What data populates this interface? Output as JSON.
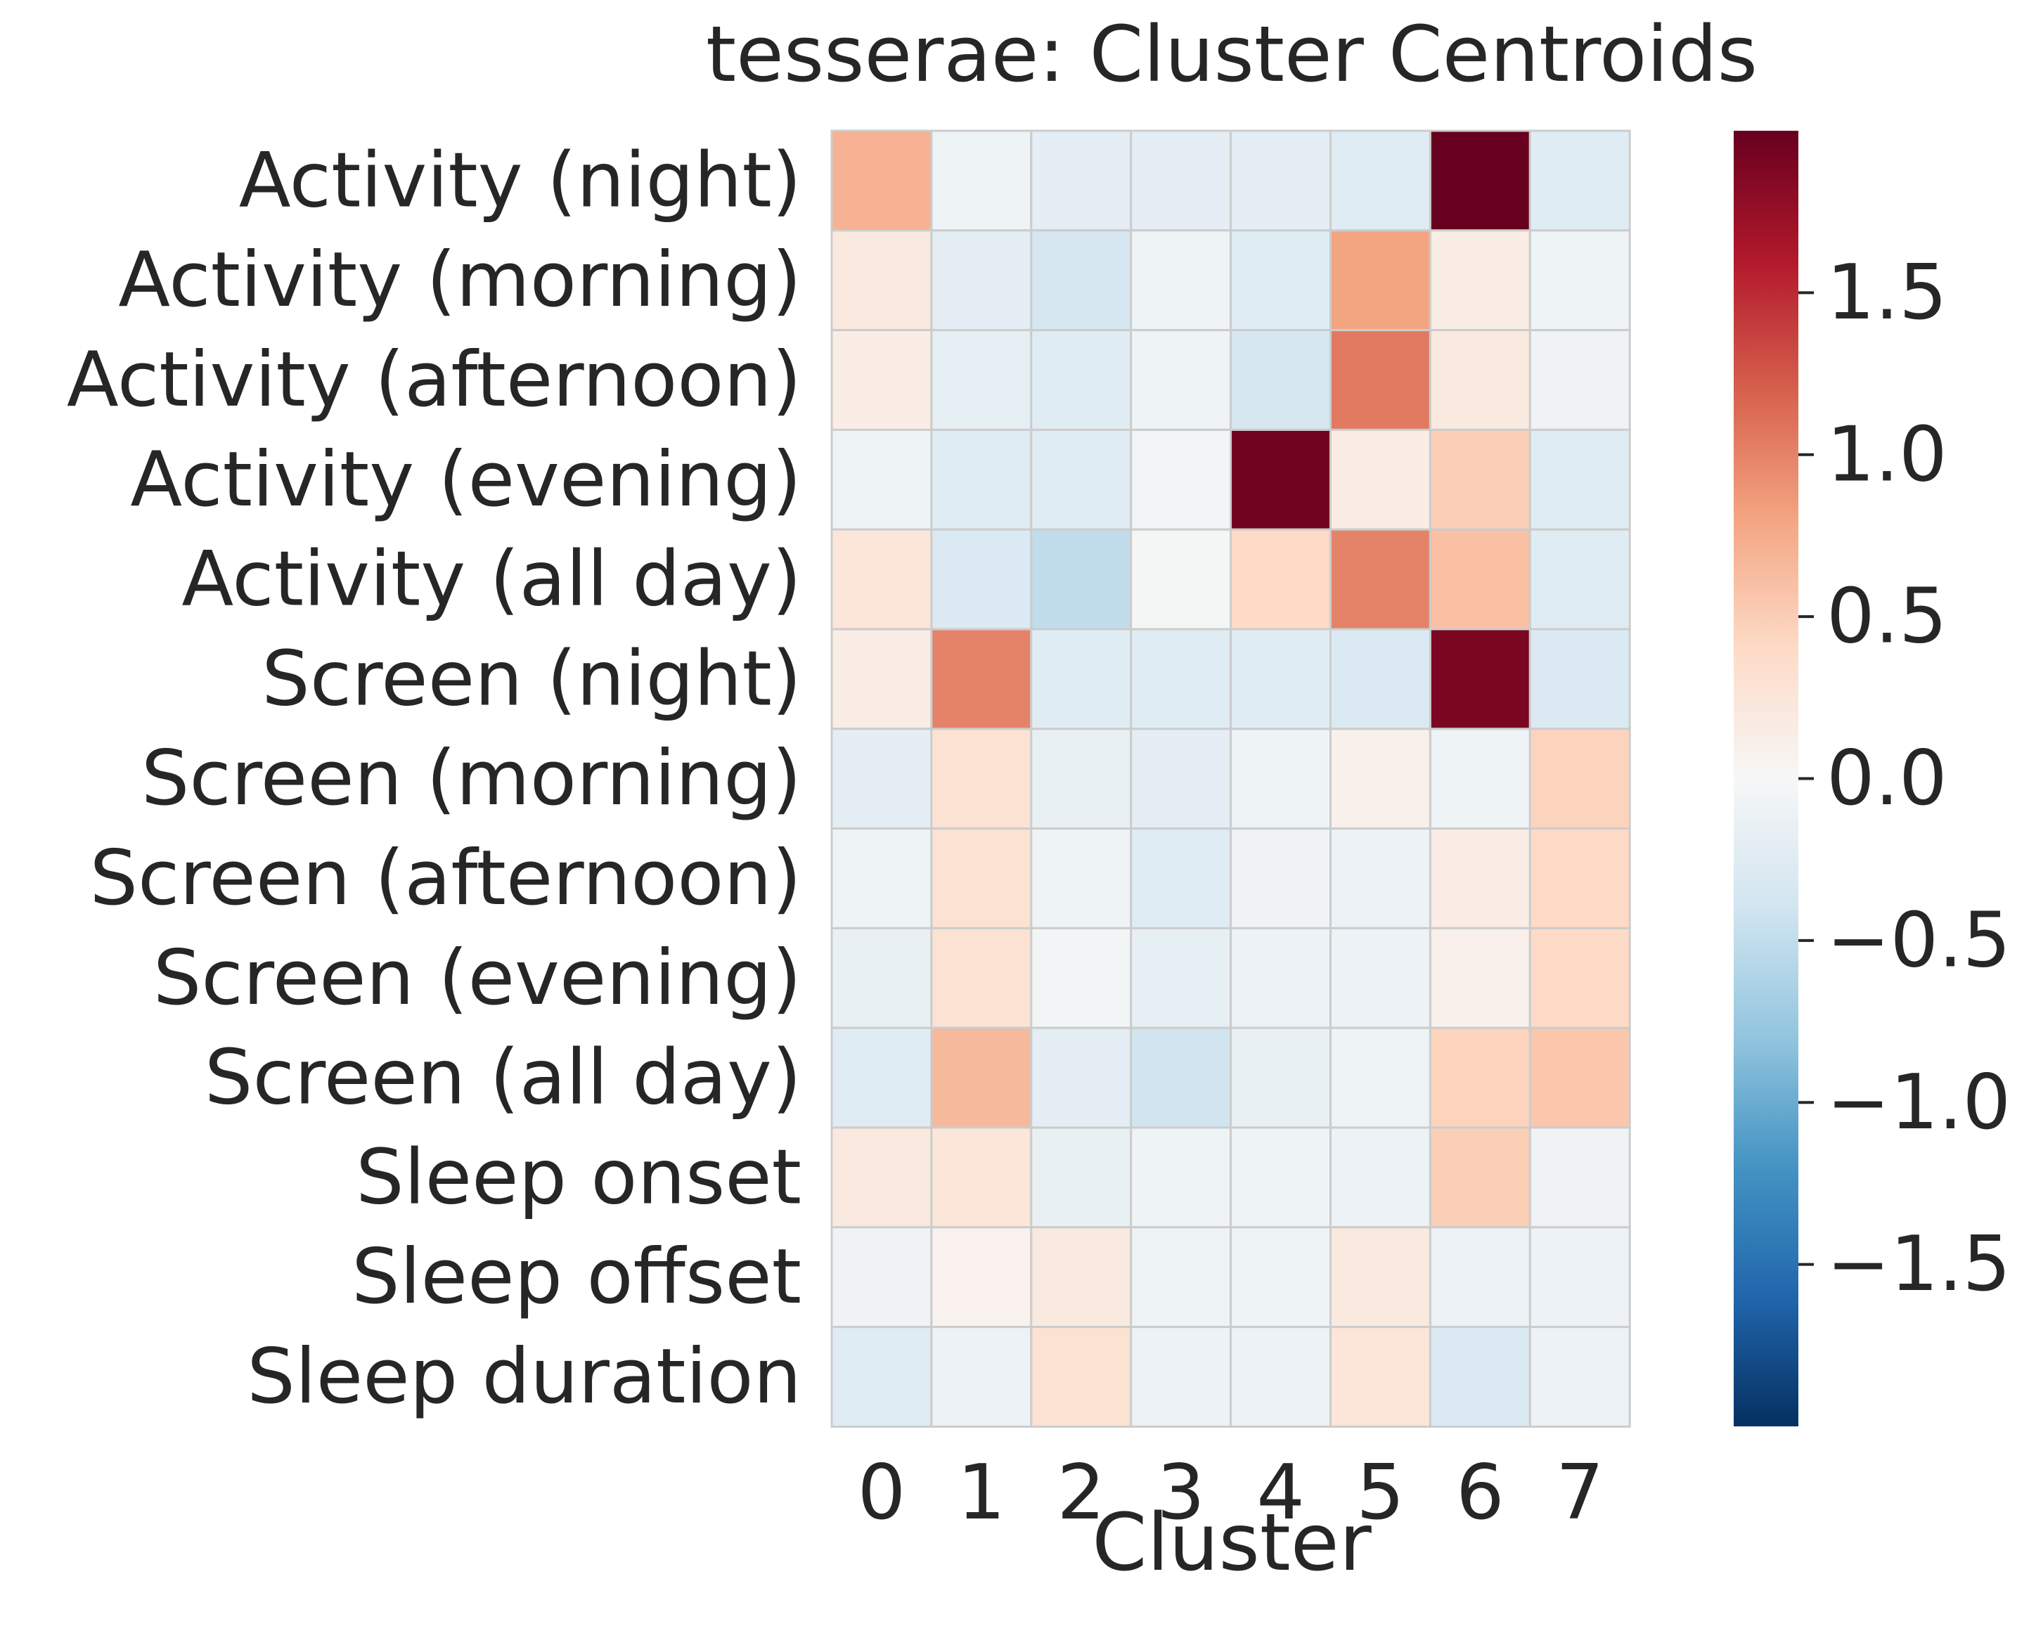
{
  "chart_data": {
    "type": "heatmap",
    "title": "tesserae: Cluster Centroids",
    "xlabel": "Cluster",
    "ylabel": "",
    "categories": [
      "0",
      "1",
      "2",
      "3",
      "4",
      "5",
      "6",
      "7"
    ],
    "rows": [
      "Activity (night)",
      "Activity (morning)",
      "Activity (afternoon)",
      "Activity (evening)",
      "Activity (all day)",
      "Screen (night)",
      "Screen (morning)",
      "Screen (afternoon)",
      "Screen (evening)",
      "Screen (all day)",
      "Sleep onset",
      "Sleep offset",
      "Sleep duration"
    ],
    "values": [
      [
        0.7,
        -0.1,
        -0.2,
        -0.2,
        -0.2,
        -0.25,
        2.0,
        -0.25
      ],
      [
        0.2,
        -0.2,
        -0.35,
        -0.1,
        -0.25,
        0.8,
        0.15,
        -0.1
      ],
      [
        0.15,
        -0.18,
        -0.25,
        -0.1,
        -0.35,
        1.05,
        0.2,
        -0.08
      ],
      [
        -0.1,
        -0.25,
        -0.25,
        -0.05,
        1.95,
        0.15,
        0.5,
        -0.25
      ],
      [
        0.25,
        -0.3,
        -0.5,
        -0.03,
        0.4,
        1.0,
        0.6,
        -0.25
      ],
      [
        0.15,
        1.0,
        -0.25,
        -0.25,
        -0.25,
        -0.3,
        1.9,
        -0.3
      ],
      [
        -0.2,
        0.3,
        -0.15,
        -0.2,
        -0.1,
        0.1,
        -0.1,
        0.45
      ],
      [
        -0.1,
        0.3,
        -0.1,
        -0.25,
        -0.08,
        -0.12,
        0.15,
        0.4
      ],
      [
        -0.15,
        0.3,
        -0.05,
        -0.18,
        -0.12,
        -0.12,
        0.1,
        0.4
      ],
      [
        -0.25,
        0.65,
        -0.2,
        -0.4,
        -0.15,
        -0.1,
        0.45,
        0.55
      ],
      [
        0.2,
        0.25,
        -0.15,
        -0.1,
        -0.1,
        -0.12,
        0.5,
        -0.08
      ],
      [
        -0.08,
        0.08,
        0.2,
        -0.1,
        -0.1,
        0.2,
        -0.12,
        -0.12
      ],
      [
        -0.25,
        -0.12,
        0.3,
        -0.12,
        -0.12,
        0.25,
        -0.3,
        -0.12
      ]
    ],
    "colorbar": {
      "cmap": "RdBu_r",
      "vmin": -2.0,
      "vmax": 2.0,
      "ticks": [
        1.5,
        1.0,
        0.5,
        0.0,
        -0.5,
        -1.0,
        -1.5
      ],
      "tick_labels": [
        "1.5",
        "1.0",
        "0.5",
        "0.0",
        "−0.5",
        "−1.0",
        "−1.5"
      ]
    }
  }
}
